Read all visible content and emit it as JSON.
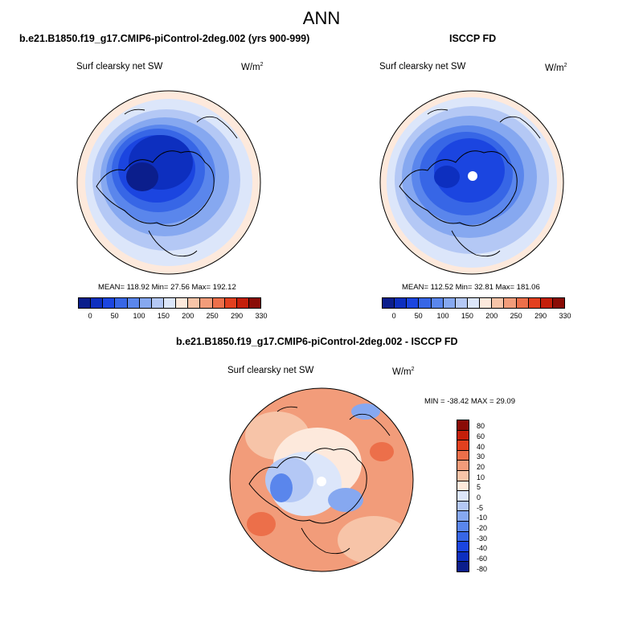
{
  "title": "ANN",
  "left_panel": {
    "title": "b.e21.B1850.f19_g17.CMIP6-piControl-2deg.002 (yrs 900-999)",
    "variable": "Surf clearsky net SW",
    "units": "W/m",
    "units_exp": "2",
    "stats": "MEAN= 118.92  Min=  27.56  Max= 192.12"
  },
  "right_panel": {
    "title": "ISCCP FD",
    "variable": "Surf clearsky net SW",
    "units": "W/m",
    "units_exp": "2",
    "stats": "MEAN= 112.52  Min=  32.81  Max= 181.06"
  },
  "diff_panel": {
    "title": "b.e21.B1850.f19_g17.CMIP6-piControl-2deg.002 - ISCCP FD",
    "variable": "Surf clearsky net SW",
    "units": "W/m",
    "units_exp": "2",
    "stats": "MIN = -38.42 MAX =  29.09"
  },
  "colorbar_main": {
    "colors": [
      "#0b1e8c",
      "#0d2fbf",
      "#1b45e0",
      "#3766e6",
      "#5a86ec",
      "#86a8f0",
      "#b4c8f5",
      "#dce6fa",
      "#fde9dc",
      "#f7c4a8",
      "#f29c7a",
      "#ec6f4a",
      "#e2401f",
      "#c41f0a",
      "#8a0c06"
    ],
    "labels": [
      "0",
      "50",
      "100",
      "150",
      "200",
      "250",
      "290",
      "330"
    ]
  },
  "colorbar_diff": {
    "colors": [
      "#8a0c06",
      "#c41f0a",
      "#e2401f",
      "#ec6f4a",
      "#f29c7a",
      "#f7c4a8",
      "#fde9dc",
      "#dce6fa",
      "#b4c8f5",
      "#86a8f0",
      "#5a86ec",
      "#3766e6",
      "#1b45e0",
      "#0d2fbf",
      "#0b1e8c"
    ],
    "labels": [
      "80",
      "60",
      "40",
      "30",
      "20",
      "10",
      "5",
      "0",
      "-5",
      "-10",
      "-20",
      "-30",
      "-40",
      "-60",
      "-80"
    ]
  }
}
